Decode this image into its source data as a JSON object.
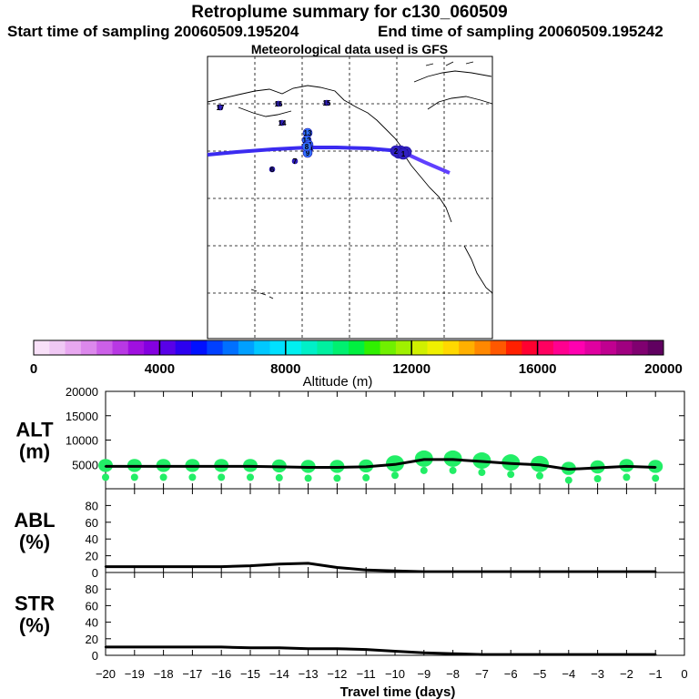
{
  "header": {
    "title": "Retroplume summary for c130_060509",
    "start": "Start time of sampling 20060509.195204",
    "end": "End time of sampling 20060509.195242",
    "met": "Meteorological data used is GFS"
  },
  "map": {
    "track_color": "#3b2bf0",
    "day_labels": [
      "17",
      "16",
      "15",
      "14",
      "13",
      "12",
      "11",
      "10",
      "9",
      "8",
      "7",
      "6",
      "5",
      "4",
      "3",
      "2",
      "1"
    ]
  },
  "colorbar": {
    "label": "Altitude (m)",
    "tick_labels": [
      "0",
      "4000",
      "8000",
      "12000",
      "16000",
      "20000"
    ],
    "colors": [
      "#f8e0f8",
      "#f0c8f4",
      "#e8a8f0",
      "#dc88ec",
      "#cc60e8",
      "#b838e4",
      "#a010e0",
      "#8400e0",
      "#5800e8",
      "#2c00f0",
      "#0010ff",
      "#0040ff",
      "#0070ff",
      "#00a0ff",
      "#00c8ff",
      "#00e0ff",
      "#00f0f0",
      "#00f0c8",
      "#00f0a0",
      "#00f070",
      "#00f040",
      "#30f000",
      "#70f000",
      "#a0f000",
      "#d0f000",
      "#f0f000",
      "#ffd800",
      "#ffb000",
      "#ff8800",
      "#ff5800",
      "#ff2000",
      "#ff0030",
      "#ff0060",
      "#ff0090",
      "#ff00b0",
      "#e000a0",
      "#c00090",
      "#a00080",
      "#800070",
      "#600060"
    ]
  },
  "chart_data": [
    {
      "type": "line",
      "name": "ALT",
      "ylabel": "ALT (m)",
      "ylabel_lines": [
        "ALT",
        "(m)"
      ],
      "ylim": [
        0,
        20000
      ],
      "y_ticks": [
        5000,
        10000,
        15000,
        20000
      ],
      "y_tick_labels": [
        "5000",
        "10000",
        "15000",
        "20000"
      ],
      "x": [
        -20,
        -19,
        -18,
        -17,
        -16,
        -15,
        -14,
        -13,
        -12,
        -11,
        -10,
        -9,
        -8,
        -7,
        -6,
        -5,
        -4,
        -3,
        -2,
        -1
      ],
      "values": [
        4600,
        4600,
        4600,
        4600,
        4600,
        4600,
        4500,
        4400,
        4400,
        4500,
        5000,
        6000,
        6000,
        5600,
        5200,
        4900,
        4000,
        4300,
        4600,
        4400
      ],
      "plume_color": "#22ee66"
    },
    {
      "type": "line",
      "name": "ABL",
      "ylabel": "ABL (%)",
      "ylabel_lines": [
        "ABL",
        "(%)"
      ],
      "ylim": [
        0,
        100
      ],
      "y_ticks": [
        0,
        20,
        40,
        60,
        80
      ],
      "y_tick_labels": [
        "0",
        "20",
        "40",
        "60",
        "80"
      ],
      "x": [
        -20,
        -19,
        -18,
        -17,
        -16,
        -15,
        -14,
        -13,
        -12,
        -11,
        -10,
        -9,
        -8,
        -7,
        -6,
        -5,
        -4,
        -3,
        -2,
        -1
      ],
      "values": [
        7,
        7,
        7,
        7,
        7,
        8,
        10,
        11,
        6,
        3,
        2,
        1,
        1,
        1,
        1,
        1,
        1,
        1,
        1,
        1
      ]
    },
    {
      "type": "line",
      "name": "STR",
      "ylabel": "STR (%)",
      "ylabel_lines": [
        "STR",
        "(%)"
      ],
      "ylim": [
        0,
        100
      ],
      "y_ticks": [
        0,
        20,
        40,
        60,
        80
      ],
      "y_tick_labels": [
        "0",
        "20",
        "40",
        "60",
        "80"
      ],
      "x": [
        -20,
        -19,
        -18,
        -17,
        -16,
        -15,
        -14,
        -13,
        -12,
        -11,
        -10,
        -9,
        -8,
        -7,
        -6,
        -5,
        -4,
        -3,
        -2,
        -1
      ],
      "values": [
        10,
        10,
        10,
        10,
        10,
        9,
        9,
        8,
        8,
        7,
        5,
        3,
        2,
        1,
        1,
        1,
        1,
        1,
        1,
        1
      ]
    }
  ],
  "x_axis": {
    "label": "Travel time (days)",
    "tick_labels": [
      "−20",
      "−19",
      "−18",
      "−17",
      "−16",
      "−15",
      "−14",
      "−13",
      "−12",
      "−11",
      "−10",
      "−9",
      "−8",
      "−7",
      "−6",
      "−5",
      "−4",
      "−3",
      "−2",
      "−1",
      "0"
    ]
  }
}
